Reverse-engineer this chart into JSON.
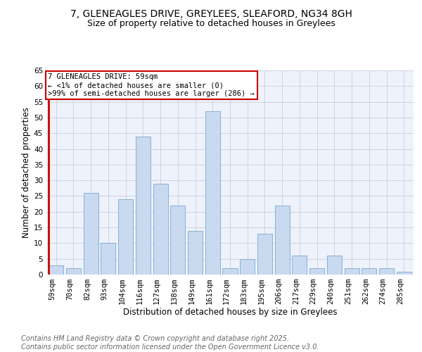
{
  "title": "7, GLENEAGLES DRIVE, GREYLEES, SLEAFORD, NG34 8GH",
  "subtitle": "Size of property relative to detached houses in Greylees",
  "xlabel": "Distribution of detached houses by size in Greylees",
  "ylabel": "Number of detached properties",
  "categories": [
    "59sqm",
    "70sqm",
    "82sqm",
    "93sqm",
    "104sqm",
    "116sqm",
    "127sqm",
    "138sqm",
    "149sqm",
    "161sqm",
    "172sqm",
    "183sqm",
    "195sqm",
    "206sqm",
    "217sqm",
    "229sqm",
    "240sqm",
    "251sqm",
    "262sqm",
    "274sqm",
    "285sqm"
  ],
  "values": [
    3,
    2,
    26,
    10,
    24,
    44,
    29,
    22,
    14,
    52,
    2,
    5,
    13,
    22,
    6,
    2,
    6,
    2,
    2,
    2,
    1
  ],
  "bar_color": "#c9d9f0",
  "bar_edge_color": "#7aaad0",
  "annotation_text": "7 GLENEAGLES DRIVE: 59sqm\n← <1% of detached houses are smaller (0)\n>99% of semi-detached houses are larger (286) →",
  "annotation_box_color": "#ffffff",
  "annotation_box_edge_color": "#cc0000",
  "ylim": [
    0,
    65
  ],
  "yticks": [
    0,
    5,
    10,
    15,
    20,
    25,
    30,
    35,
    40,
    45,
    50,
    55,
    60,
    65
  ],
  "bg_color": "#ffffff",
  "plot_bg_color": "#eef2fa",
  "grid_color": "#c8cfe0",
  "footer_line1": "Contains HM Land Registry data © Crown copyright and database right 2025.",
  "footer_line2": "Contains public sector information licensed under the Open Government Licence v3.0.",
  "title_fontsize": 10,
  "subtitle_fontsize": 9,
  "label_fontsize": 8.5,
  "tick_fontsize": 7.5,
  "footer_fontsize": 7,
  "annot_fontsize": 7.5
}
